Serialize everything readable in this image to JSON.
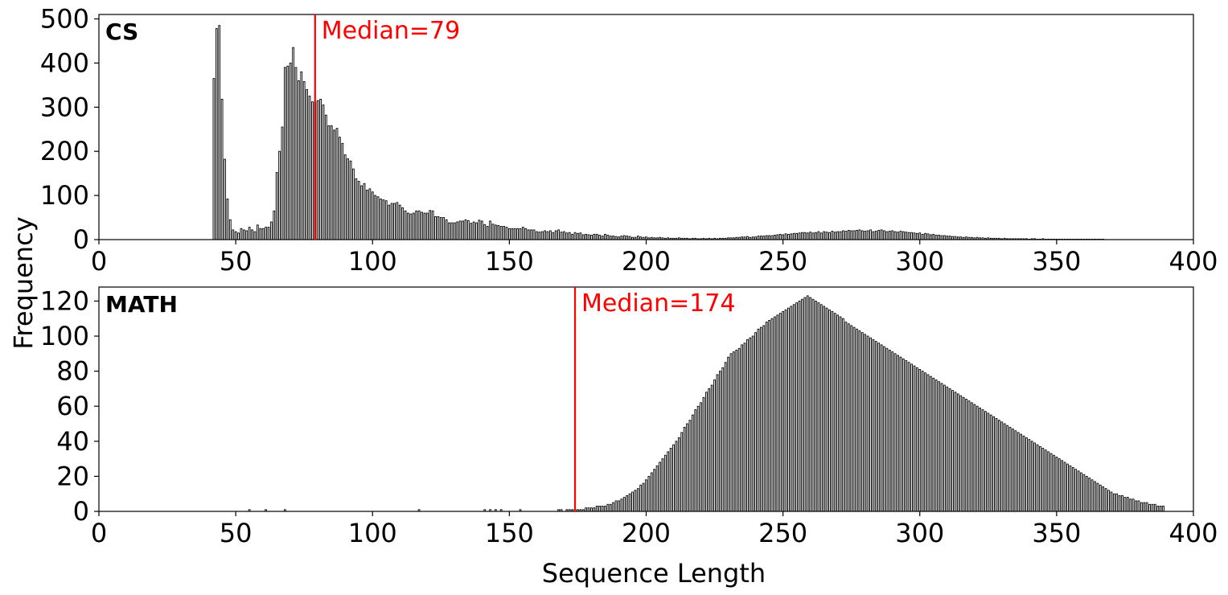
{
  "figure": {
    "xlabel": "Sequence Length",
    "ylabel": "Frequency"
  },
  "colors": {
    "bar_edge": "#000000",
    "bar_fill": "#ffffff",
    "median_line": "#ff0000"
  },
  "chart_data": [
    {
      "type": "bar",
      "panel_label": "CS",
      "xlim": [
        0,
        400
      ],
      "ylim": [
        0,
        510
      ],
      "xticks": [
        0,
        50,
        100,
        150,
        200,
        250,
        300,
        350,
        400
      ],
      "yticks": [
        0,
        100,
        200,
        300,
        400,
        500
      ],
      "median": 79,
      "median_label": "Median=79",
      "x_start": 40,
      "values": [
        0,
        0,
        365,
        478,
        485,
        318,
        182,
        92,
        45,
        22,
        18,
        15,
        25,
        22,
        20,
        28,
        22,
        18,
        33,
        25,
        25,
        28,
        28,
        40,
        65,
        152,
        200,
        255,
        390,
        393,
        400,
        435,
        390,
        360,
        380,
        358,
        340,
        325,
        312,
        312,
        315,
        318,
        305,
        282,
        258,
        258,
        248,
        252,
        232,
        218,
        192,
        183,
        178,
        160,
        138,
        132,
        122,
        127,
        112,
        115,
        108,
        100,
        97,
        92,
        90,
        88,
        78,
        82,
        82,
        84,
        78,
        72,
        65,
        60,
        58,
        60,
        65,
        65,
        62,
        60,
        60,
        66,
        65,
        52,
        52,
        50,
        50,
        45,
        38,
        38,
        38,
        40,
        42,
        42,
        45,
        43,
        37,
        40,
        38,
        44,
        42,
        34,
        30,
        42,
        35,
        33,
        32,
        30,
        30,
        28,
        25,
        25,
        25,
        25,
        25,
        28,
        25,
        22,
        22,
        22,
        18,
        17,
        18,
        20,
        18,
        20,
        16,
        20,
        22,
        17,
        18,
        15,
        16,
        12,
        16,
        14,
        15,
        11,
        12,
        11,
        10,
        12,
        12,
        10,
        8,
        12,
        10,
        8,
        8,
        7,
        6,
        8,
        9,
        8,
        7,
        5,
        5,
        8,
        6,
        5,
        6,
        4,
        5,
        4,
        4,
        5,
        4,
        3,
        4,
        3,
        3,
        3,
        4,
        3,
        3,
        3,
        2,
        3,
        3,
        2,
        2,
        3,
        2,
        3,
        2,
        3,
        2,
        3,
        3,
        3,
        4,
        4,
        4,
        5,
        5,
        6,
        6,
        7,
        5,
        6,
        6,
        8,
        8,
        8,
        9,
        9,
        9,
        10,
        11,
        12,
        11,
        13,
        12,
        13,
        14,
        14,
        15,
        16,
        16,
        15,
        17,
        15,
        16,
        18,
        15,
        18,
        17,
        16,
        19,
        17,
        18,
        18,
        20,
        19,
        21,
        20,
        20,
        21,
        22,
        20,
        19,
        20,
        22,
        18,
        19,
        21,
        22,
        20,
        18,
        19,
        20,
        18,
        17,
        19,
        18,
        17,
        16,
        16,
        15,
        14,
        15,
        12,
        14,
        13,
        11,
        12,
        10,
        10,
        9,
        9,
        8,
        8,
        7,
        7,
        6,
        6,
        5,
        6,
        5,
        5,
        4,
        5,
        4,
        4,
        3,
        4,
        3,
        3,
        3,
        3,
        2,
        3,
        2,
        2,
        2,
        2,
        2,
        2,
        2,
        2,
        1,
        2,
        2,
        1,
        1,
        2,
        1,
        1,
        1,
        1,
        1,
        1,
        1,
        1,
        1,
        1,
        1,
        1,
        1,
        1,
        1,
        1,
        1,
        1,
        1,
        1,
        1,
        1
      ]
    },
    {
      "type": "bar",
      "panel_label": "MATH",
      "xlim": [
        0,
        400
      ],
      "ylim": [
        0,
        128
      ],
      "xticks": [
        0,
        50,
        100,
        150,
        200,
        250,
        300,
        350,
        400
      ],
      "yticks": [
        0,
        20,
        40,
        60,
        80,
        100,
        120
      ],
      "median": 174,
      "median_label": "Median=174",
      "x_start": 50,
      "values": [
        0,
        0,
        0,
        0,
        0,
        1,
        0,
        0,
        0,
        0,
        0,
        1,
        0,
        0,
        0,
        0,
        0,
        0,
        1,
        0,
        0,
        0,
        0,
        0,
        0,
        0,
        0,
        0,
        0,
        0,
        0,
        0,
        0,
        0,
        0,
        0,
        0,
        0,
        0,
        0,
        0,
        0,
        0,
        0,
        0,
        0,
        0,
        0,
        0,
        0,
        0,
        0,
        0,
        0,
        0,
        0,
        0,
        0,
        0,
        0,
        0,
        0,
        0,
        0,
        0,
        0,
        0,
        1,
        0,
        0,
        0,
        0,
        0,
        0,
        0,
        0,
        0,
        0,
        0,
        0,
        0,
        0,
        0,
        0,
        0,
        0,
        0,
        0,
        0,
        0,
        0,
        1,
        0,
        1,
        0,
        1,
        0,
        1,
        0,
        0,
        0,
        0,
        0,
        0,
        1,
        0,
        0,
        0,
        0,
        0,
        0,
        0,
        0,
        0,
        0,
        0,
        0,
        0,
        1,
        1,
        0,
        1,
        1,
        1,
        1,
        1,
        1,
        1,
        2,
        2,
        2,
        2,
        3,
        3,
        3,
        3,
        4,
        4,
        5,
        6,
        6,
        7,
        8,
        9,
        10,
        11,
        12,
        13,
        15,
        16,
        18,
        20,
        22,
        24,
        26,
        28,
        30,
        32,
        34,
        36,
        38,
        40,
        42,
        45,
        48,
        50,
        52,
        55,
        58,
        60,
        62,
        65,
        68,
        70,
        72,
        75,
        78,
        80,
        82,
        85,
        88,
        90,
        91,
        92,
        93,
        95,
        96,
        98,
        99,
        100,
        102,
        104,
        105,
        106,
        108,
        109,
        110,
        111,
        112,
        113,
        114,
        115,
        116,
        117,
        118,
        119,
        120,
        121,
        122,
        123,
        122,
        121,
        120,
        119,
        118,
        117,
        116,
        115,
        114,
        113,
        112,
        111,
        110,
        108,
        107,
        106,
        105,
        104,
        103,
        102,
        101,
        100,
        99,
        98,
        97,
        96,
        95,
        94,
        93,
        92,
        91,
        90,
        89,
        88,
        87,
        86,
        85,
        84,
        83,
        82,
        81,
        80,
        79,
        78,
        77,
        76,
        75,
        74,
        73,
        72,
        71,
        70,
        69,
        68,
        67,
        66,
        65,
        64,
        63,
        62,
        61,
        60,
        59,
        58,
        57,
        56,
        55,
        54,
        53,
        52,
        51,
        50,
        49,
        48,
        47,
        46,
        45,
        44,
        43,
        42,
        41,
        40,
        39,
        38,
        37,
        36,
        35,
        34,
        33,
        32,
        31,
        30,
        29,
        28,
        27,
        26,
        25,
        24,
        23,
        22,
        21,
        20,
        19,
        18,
        17,
        16,
        15,
        14,
        13,
        12,
        11,
        10,
        10,
        9,
        9,
        8,
        8,
        7,
        7,
        6,
        6,
        5,
        5,
        5,
        4,
        4,
        4,
        3,
        3,
        3
      ]
    }
  ]
}
